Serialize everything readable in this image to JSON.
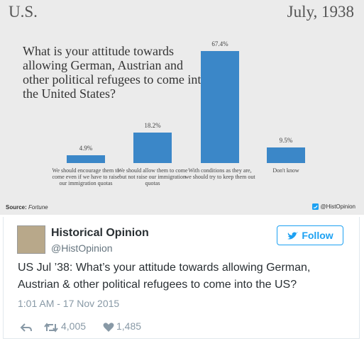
{
  "chart_data": {
    "type": "bar",
    "header_left": "U.S.",
    "header_right": "July, 1938",
    "title": "What is your attitude towards allowing German, Austrian and other political refugees to come into the United States?",
    "categories": [
      "We should encourage them to come even if we have to raise our immigration quotas",
      "We should allow them to come but not raise our immigration quotas",
      "With conditions as they are, we should try to keep them out",
      "Don't know"
    ],
    "values": [
      4.9,
      18.2,
      67.4,
      9.5
    ],
    "value_labels": [
      "4.9%",
      "18.2%",
      "67.4%",
      "9.5%"
    ],
    "color": "#3b87c8",
    "source_label": "Source:",
    "source": "Fortune",
    "credit": "@HistOpinion"
  },
  "tweet": {
    "name": "Historical Opinion",
    "handle": "@HistOpinion",
    "follow": "Follow",
    "text": "US Jul ’38: What’s your attitude towards allowing German, Austrian & other political refugees to come into the US?",
    "timestamp": "1:01 AM - 17 Nov 2015",
    "retweets": "4,005",
    "likes": "1,485"
  }
}
